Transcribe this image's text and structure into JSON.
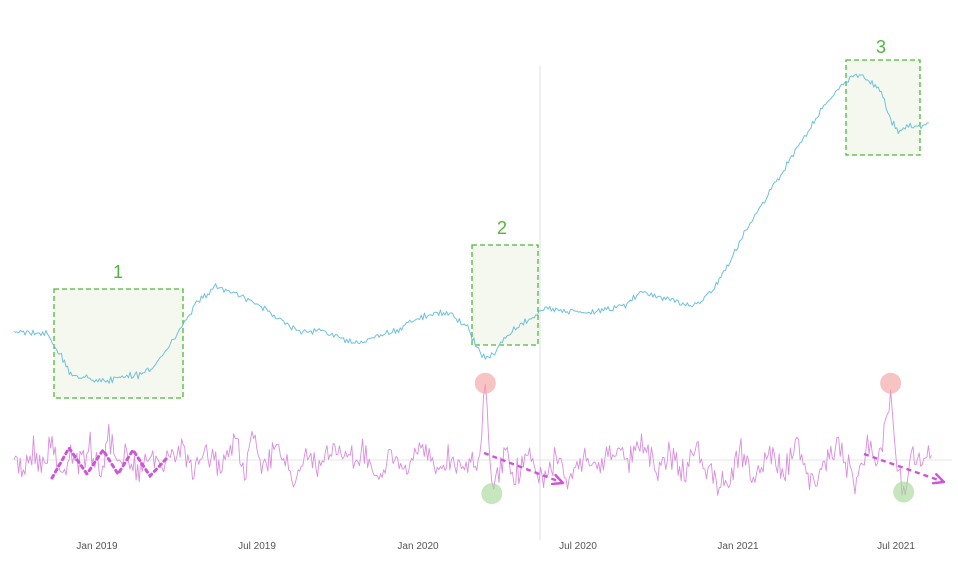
{
  "chart_data": {
    "type": "line",
    "title": "",
    "xlabel": "",
    "ylabel": "",
    "x_ticks": [
      "Jan 2019",
      "Jul 2019",
      "Jan 2020",
      "Jul 2020",
      "Jan 2021",
      "Jul 2021"
    ],
    "x_range": [
      "2018-10-15",
      "2021-07-20"
    ],
    "grid": false,
    "legend": "none",
    "colors": {
      "price": "#6fc2dc",
      "oscillator": "#d98ee0",
      "zone_border": "#4fb83a",
      "zone_fill": "#f4f8ee",
      "zone_label": "#4fb83a",
      "arrow": "#cc55d8",
      "spike_high": "#f4a3a3",
      "spike_low": "#a8d89a",
      "divider": "#eaeaea",
      "baseline": "#e6e6e6"
    },
    "series": [
      {
        "x": [
          "2018-10-15",
          "2018-11-01",
          "2018-11-20",
          "2018-12-05",
          "2018-12-15",
          "2019-01-01",
          "2019-01-20",
          "2019-02-10",
          "2019-03-01",
          "2019-03-20",
          "2019-04-15",
          "2019-05-01",
          "2019-05-20",
          "2019-06-05",
          "2019-06-20",
          "2019-07-01",
          "2019-07-15",
          "2019-08-01",
          "2019-08-20",
          "2019-09-10",
          "2019-10-01",
          "2019-10-20",
          "2019-11-10",
          "2019-12-01",
          "2019-12-20",
          "2020-01-10",
          "2020-01-30",
          "2020-02-15",
          "2020-02-25",
          "2020-03-05",
          "2020-03-15",
          "2020-03-25",
          "2020-04-10",
          "2020-04-25",
          "2020-05-10",
          "2020-05-25",
          "2020-06-10",
          "2020-06-25",
          "2020-07-15",
          "2020-08-01",
          "2020-08-20",
          "2020-09-10",
          "2020-09-25",
          "2020-10-10",
          "2020-10-25",
          "2020-11-10",
          "2020-11-25",
          "2020-12-10",
          "2020-12-25",
          "2021-01-10",
          "2021-01-25",
          "2021-02-10",
          "2021-02-25",
          "2021-03-15",
          "2021-04-01",
          "2021-04-15",
          "2021-04-25",
          "2021-05-05",
          "2021-05-15",
          "2021-05-25",
          "2021-06-05",
          "2021-06-15",
          "2021-06-25"
        ],
        "values": [
          30.0,
          29.8,
          29.4,
          24.5,
          20.5,
          19.8,
          19.2,
          20.0,
          20.6,
          23.4,
          31.6,
          36.8,
          39.8,
          38.4,
          37.2,
          36.0,
          34.6,
          32.0,
          29.6,
          30.4,
          28.4,
          27.4,
          29.0,
          30.2,
          32.6,
          34.2,
          33.8,
          30.6,
          26.6,
          24.0,
          25.2,
          28.4,
          31.2,
          33.0,
          35.0,
          34.8,
          34.4,
          34.2,
          34.8,
          35.6,
          38.6,
          37.6,
          36.6,
          35.4,
          36.8,
          40.6,
          46.0,
          52.0,
          57.0,
          62.0,
          67.0,
          72.0,
          77.0,
          82.0,
          85.4,
          86.0,
          84.0,
          82.4,
          76.0,
          73.4,
          75.0,
          74.6,
          75.6
        ]
      },
      {
        "x": [
          "2018-10-15",
          "2018-10-25",
          "2018-11-05",
          "2018-11-15",
          "2018-11-25",
          "2018-12-05",
          "2018-12-15",
          "2018-12-25",
          "2019-01-05",
          "2019-01-15",
          "2019-01-25",
          "2019-02-05",
          "2019-02-15",
          "2019-02-25",
          "2019-03-10",
          "2019-03-25",
          "2019-04-10",
          "2019-04-25",
          "2019-05-10",
          "2019-05-25",
          "2019-06-10",
          "2019-06-20",
          "2019-06-28",
          "2019-07-10",
          "2019-07-25",
          "2019-08-10",
          "2019-08-25",
          "2019-09-10",
          "2019-09-25",
          "2019-10-10",
          "2019-10-25",
          "2019-11-10",
          "2019-11-25",
          "2019-12-10",
          "2019-12-25",
          "2020-01-10",
          "2020-01-25",
          "2020-02-10",
          "2020-02-20",
          "2020-02-28",
          "2020-03-05",
          "2020-03-12",
          "2020-03-18",
          "2020-03-25",
          "2020-04-05",
          "2020-04-20",
          "2020-05-05",
          "2020-05-20",
          "2020-06-05",
          "2020-06-20",
          "2020-07-05",
          "2020-07-20",
          "2020-08-05",
          "2020-08-20",
          "2020-09-05",
          "2020-09-20",
          "2020-10-05",
          "2020-10-20",
          "2020-11-05",
          "2020-11-20",
          "2020-12-05",
          "2020-12-20",
          "2021-01-05",
          "2021-01-20",
          "2021-02-05",
          "2021-02-20",
          "2021-03-05",
          "2021-03-20",
          "2021-04-05",
          "2021-04-20",
          "2021-05-01",
          "2021-05-08",
          "2021-05-15",
          "2021-05-22",
          "2021-05-29",
          "2021-06-08",
          "2021-06-18",
          "2021-06-28"
        ],
        "values": [
          0.0,
          -1.2,
          1.6,
          -0.8,
          2.6,
          -2.2,
          1.4,
          -0.6,
          1.8,
          -1.8,
          2.4,
          -1.2,
          1.0,
          -1.6,
          1.2,
          -0.8,
          2.0,
          -1.4,
          0.8,
          -1.0,
          3.2,
          -1.8,
          4.4,
          -1.6,
          2.6,
          -2.8,
          1.4,
          -1.2,
          2.0,
          -0.6,
          1.2,
          -2.0,
          0.8,
          -1.4,
          1.6,
          -1.2,
          0.6,
          -1.0,
          0.8,
          -0.4,
          9.6,
          -4.2,
          -1.6,
          0.8,
          -2.6,
          1.4,
          -3.0,
          0.6,
          -2.8,
          0.4,
          -0.6,
          1.4,
          -0.4,
          2.0,
          -1.6,
          0.8,
          -1.8,
          1.2,
          -2.6,
          -3.0,
          0.8,
          -2.2,
          1.0,
          -1.8,
          2.4,
          -3.4,
          -1.0,
          2.2,
          -2.8,
          1.6,
          -0.6,
          3.0,
          9.6,
          -0.4,
          -4.0,
          1.0,
          -0.8,
          0.6
        ]
      }
    ],
    "annotations": {
      "zone_labels": [
        "1",
        "2",
        "3"
      ],
      "oscillator_spikes": [
        {
          "date": "2020-03-05",
          "value": 9.6,
          "kind": "high"
        },
        {
          "date": "2020-03-12",
          "value": -4.2,
          "kind": "low"
        },
        {
          "date": "2021-05-15",
          "value": 9.6,
          "kind": "high"
        },
        {
          "date": "2021-05-29",
          "value": -4.0,
          "kind": "low"
        }
      ]
    }
  }
}
